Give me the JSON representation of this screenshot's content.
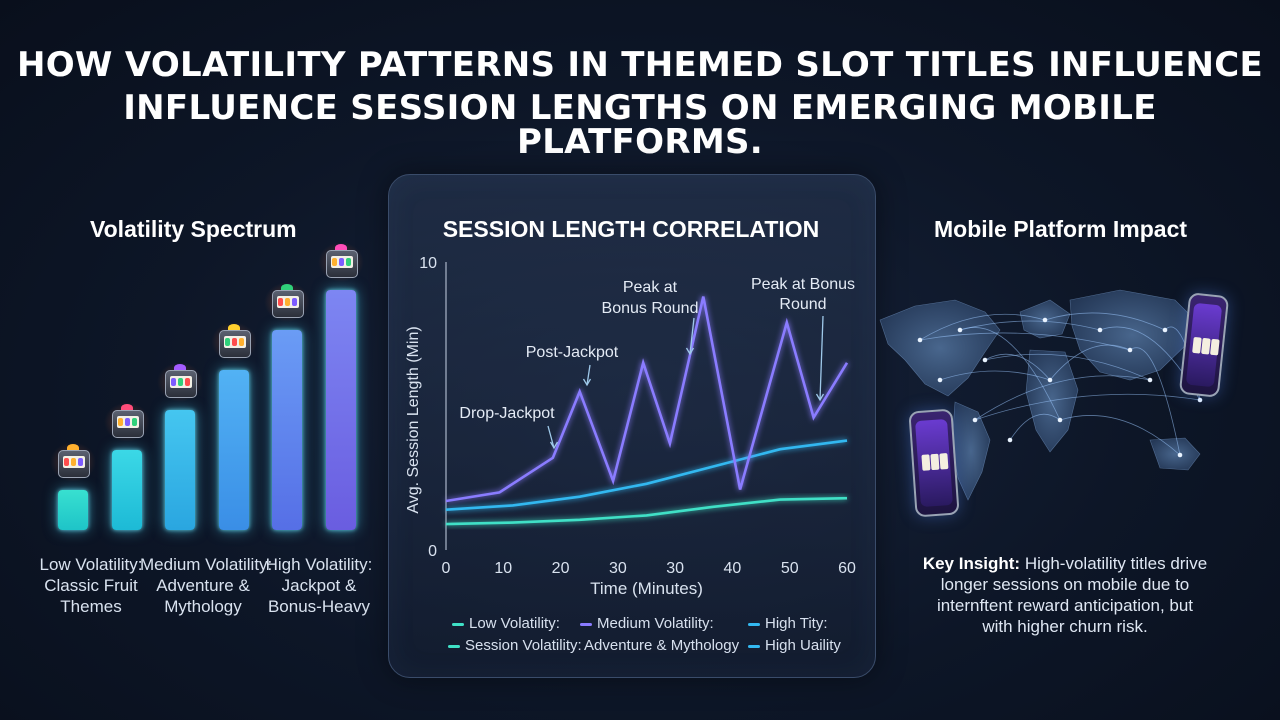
{
  "title": {
    "line1": "HOW VOLATILITY PATTERNS IN THEMED SLOT TITLES INFLUENCE",
    "line2": "INFLUENCE SESSION LENGTHS ON EMERGING MOBILE PLATFORMS."
  },
  "left": {
    "title": "Volatility Spectrum",
    "bar_levels": [
      1,
      2,
      3,
      4,
      5,
      6
    ],
    "labels": [
      {
        "line1": "Low Volatility:",
        "line2": "Classic Fruit",
        "line3": "Themes"
      },
      {
        "line1": "Medium Volatility:",
        "line2": "Adventure &",
        "line3": "Mythology"
      },
      {
        "line1": "High Volatility:",
        "line2": "Jackpot &",
        "line3": "Bonus-Heavy"
      }
    ]
  },
  "chart_data": {
    "type": "line",
    "title": "SESSION LENGTH CORRELATION",
    "xlabel": "Time (Minutes)",
    "ylabel": "Avg. Session Length (Min)",
    "xlim": [
      0,
      60
    ],
    "ylim": [
      0,
      10
    ],
    "x_ticks": [
      "0",
      "10",
      "20",
      "30",
      "30",
      "40",
      "50",
      "60"
    ],
    "y_ticks": [
      "0",
      "10"
    ],
    "grid": false,
    "series": [
      {
        "name": "Low Volatility",
        "color": "#3fe0c6",
        "points": [
          [
            0,
            0.9
          ],
          [
            10,
            0.95
          ],
          [
            20,
            1.05
          ],
          [
            30,
            1.2
          ],
          [
            40,
            1.5
          ],
          [
            50,
            1.75
          ],
          [
            60,
            1.8
          ]
        ]
      },
      {
        "name": "High Volatility",
        "color": "#33b8f0",
        "points": [
          [
            0,
            1.4
          ],
          [
            10,
            1.55
          ],
          [
            20,
            1.85
          ],
          [
            30,
            2.3
          ],
          [
            40,
            2.9
          ],
          [
            50,
            3.5
          ],
          [
            60,
            3.8
          ]
        ]
      },
      {
        "name": "Medium Volatility",
        "color": "#8a7bff",
        "points": [
          [
            0,
            1.7
          ],
          [
            8,
            2.0
          ],
          [
            16,
            3.2
          ],
          [
            20,
            5.5
          ],
          [
            25,
            2.4
          ],
          [
            29.5,
            6.5
          ],
          [
            33.5,
            3.7
          ],
          [
            38.5,
            8.8
          ],
          [
            44,
            2.1
          ],
          [
            51,
            7.9
          ],
          [
            55,
            4.6
          ],
          [
            60,
            6.5
          ]
        ]
      }
    ],
    "annotations": [
      {
        "text": "Drop-Jackpot",
        "x": 18,
        "y": 3.5
      },
      {
        "text": "Post-Jackpot",
        "x": 25,
        "y": 5.5
      },
      {
        "text": "Peak at",
        "text2": "Bonus Round",
        "x": 36,
        "y": 6.7
      },
      {
        "text": "Peak at Bonus",
        "text2": "Round",
        "x": 55,
        "y": 5.2
      }
    ],
    "legend": [
      {
        "text": "Low Volatility:",
        "color": "#3fe0c6"
      },
      {
        "text": "Medium Volatility:",
        "color": "#8a7bff"
      },
      {
        "text": "High Tity:",
        "color": "#33b8f0"
      },
      {
        "text": "Session Volatility:",
        "color": "#3fe0c6"
      },
      {
        "text": "Adventure & Mythology",
        "color": ""
      },
      {
        "text": "High Uaility",
        "color": "#33b8f0"
      }
    ]
  },
  "right": {
    "title": "Mobile Platform Impact",
    "insight_bold": "Key Insight:",
    "insight_line1": " High-volatility titles drive",
    "insight_line2": "longer sessions on mobile due to",
    "insight_line3": "internftent reward anticipation, but",
    "insight_line4": "with higher churn risk."
  }
}
